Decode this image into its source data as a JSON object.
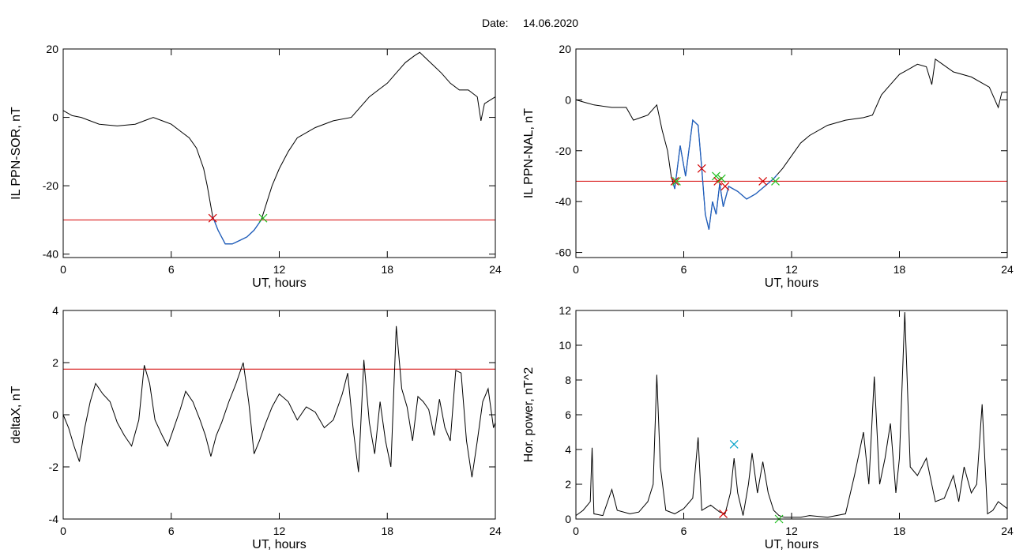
{
  "date_label": "Date:",
  "date_value": "14.06.2020",
  "colors": {
    "line": "#000000",
    "below": "#1f5fbf",
    "threshold": "#d40000",
    "marker_start": "#d40000",
    "marker_end": "#20c020",
    "marker_peak": "#00a0c8"
  },
  "chart_data": [
    {
      "type": "line",
      "id": "il-sor",
      "xlabel": "UT, hours",
      "ylabel": "IL PPN-SOR, nT",
      "xlim": [
        0,
        24
      ],
      "ylim": [
        -41,
        20
      ],
      "xticks": [
        0,
        6,
        12,
        18,
        24
      ],
      "yticks": [
        -40,
        -20,
        0,
        20
      ],
      "threshold": -30,
      "below_color_segment": [
        8.3,
        11.0
      ],
      "series": [
        {
          "points": [
            [
              0,
              2
            ],
            [
              0.5,
              0.5
            ],
            [
              1,
              0
            ],
            [
              2,
              -2
            ],
            [
              3,
              -2.5
            ],
            [
              4,
              -2
            ],
            [
              4.5,
              -1
            ],
            [
              5,
              0
            ],
            [
              5.5,
              -1
            ],
            [
              6,
              -2
            ],
            [
              6.5,
              -4
            ],
            [
              7,
              -6
            ],
            [
              7.4,
              -9
            ],
            [
              7.8,
              -15
            ],
            [
              8,
              -20
            ],
            [
              8.3,
              -29
            ],
            [
              8.6,
              -33
            ],
            [
              9,
              -37
            ],
            [
              9.4,
              -37
            ],
            [
              9.8,
              -36
            ],
            [
              10.2,
              -35
            ],
            [
              10.6,
              -33
            ],
            [
              11,
              -30
            ],
            [
              11.3,
              -25
            ],
            [
              11.6,
              -20
            ],
            [
              12,
              -15
            ],
            [
              12.5,
              -10
            ],
            [
              13,
              -6
            ],
            [
              14,
              -3
            ],
            [
              15,
              -1
            ],
            [
              16,
              0
            ],
            [
              16.5,
              3
            ],
            [
              17,
              6
            ],
            [
              17.5,
              8
            ],
            [
              18,
              10
            ],
            [
              18.5,
              13
            ],
            [
              19,
              16
            ],
            [
              19.5,
              18
            ],
            [
              19.8,
              19
            ],
            [
              20.2,
              17
            ],
            [
              20.6,
              15
            ],
            [
              21,
              13
            ],
            [
              21.5,
              10
            ],
            [
              22,
              8
            ],
            [
              22.5,
              8
            ],
            [
              23,
              6
            ],
            [
              23.2,
              -1
            ],
            [
              23.4,
              4
            ],
            [
              24,
              6
            ]
          ]
        }
      ],
      "markers": [
        {
          "x": 8.3,
          "y": -29.5,
          "kind": "start"
        },
        {
          "x": 11.1,
          "y": -29.5,
          "kind": "end"
        }
      ]
    },
    {
      "type": "line",
      "id": "il-nal",
      "xlabel": "UT, hours",
      "ylabel": "IL PPN-NAL, nT",
      "xlim": [
        0,
        24
      ],
      "ylim": [
        -62,
        20
      ],
      "xticks": [
        0,
        6,
        12,
        18,
        24
      ],
      "yticks": [
        -60,
        -40,
        -20,
        0,
        20
      ],
      "threshold": -32,
      "below_color_segment": [
        5.4,
        11.2
      ],
      "series": [
        {
          "points": [
            [
              0,
              0
            ],
            [
              0.5,
              -1
            ],
            [
              1,
              -2
            ],
            [
              2,
              -3
            ],
            [
              2.8,
              -3
            ],
            [
              3.2,
              -8
            ],
            [
              3.6,
              -7
            ],
            [
              4,
              -6
            ],
            [
              4.5,
              -2
            ],
            [
              4.8,
              -12
            ],
            [
              5.1,
              -20
            ],
            [
              5.3,
              -30
            ],
            [
              5.5,
              -35
            ],
            [
              5.8,
              -18
            ],
            [
              6.1,
              -30
            ],
            [
              6.5,
              -8
            ],
            [
              6.8,
              -10
            ],
            [
              7,
              -27
            ],
            [
              7.2,
              -45
            ],
            [
              7.4,
              -51
            ],
            [
              7.6,
              -40
            ],
            [
              7.8,
              -45
            ],
            [
              8,
              -33
            ],
            [
              8.2,
              -42
            ],
            [
              8.5,
              -34
            ],
            [
              9,
              -36
            ],
            [
              9.5,
              -39
            ],
            [
              10,
              -37
            ],
            [
              10.5,
              -34
            ],
            [
              11,
              -31
            ],
            [
              11.5,
              -27
            ],
            [
              12,
              -22
            ],
            [
              12.5,
              -17
            ],
            [
              13,
              -14
            ],
            [
              14,
              -10
            ],
            [
              15,
              -8
            ],
            [
              16,
              -7
            ],
            [
              16.5,
              -6
            ],
            [
              17,
              2
            ],
            [
              17.5,
              6
            ],
            [
              18,
              10
            ],
            [
              18.5,
              12
            ],
            [
              19,
              14
            ],
            [
              19.5,
              13
            ],
            [
              19.8,
              6
            ],
            [
              20,
              16
            ],
            [
              20.4,
              14
            ],
            [
              21,
              11
            ],
            [
              22,
              9
            ],
            [
              23,
              5
            ],
            [
              23.5,
              -3
            ],
            [
              23.7,
              3
            ],
            [
              24,
              3
            ]
          ]
        }
      ],
      "markers": [
        {
          "x": 5.5,
          "y": -32,
          "kind": "start"
        },
        {
          "x": 5.6,
          "y": -32,
          "kind": "end"
        },
        {
          "x": 7.0,
          "y": -27,
          "kind": "start"
        },
        {
          "x": 7.8,
          "y": -30,
          "kind": "end"
        },
        {
          "x": 7.9,
          "y": -32,
          "kind": "start"
        },
        {
          "x": 8.1,
          "y": -31,
          "kind": "end"
        },
        {
          "x": 8.3,
          "y": -34,
          "kind": "start"
        },
        {
          "x": 10.4,
          "y": -32,
          "kind": "start"
        },
        {
          "x": 11.1,
          "y": -32,
          "kind": "end"
        }
      ]
    },
    {
      "type": "line",
      "id": "deltax",
      "xlabel": "UT, hours",
      "ylabel": "deltaX, nT",
      "xlim": [
        0,
        24
      ],
      "ylim": [
        -4,
        4
      ],
      "xticks": [
        0,
        6,
        12,
        18,
        24
      ],
      "yticks": [
        -4,
        -2,
        0,
        2,
        4
      ],
      "threshold": 1.75,
      "series": [
        {
          "points": [
            [
              0,
              0
            ],
            [
              0.3,
              -0.5
            ],
            [
              0.6,
              -1.2
            ],
            [
              0.9,
              -1.8
            ],
            [
              1.2,
              -0.5
            ],
            [
              1.5,
              0.5
            ],
            [
              1.8,
              1.2
            ],
            [
              2.2,
              0.8
            ],
            [
              2.6,
              0.5
            ],
            [
              3,
              -0.3
            ],
            [
              3.4,
              -0.8
            ],
            [
              3.8,
              -1.2
            ],
            [
              4.2,
              -0.2
            ],
            [
              4.5,
              1.9
            ],
            [
              4.8,
              1.2
            ],
            [
              5.1,
              -0.2
            ],
            [
              5.5,
              -0.8
            ],
            [
              5.8,
              -1.2
            ],
            [
              6.1,
              -0.6
            ],
            [
              6.5,
              0.2
            ],
            [
              6.8,
              0.9
            ],
            [
              7.2,
              0.5
            ],
            [
              7.6,
              -0.2
            ],
            [
              7.9,
              -0.8
            ],
            [
              8.2,
              -1.6
            ],
            [
              8.5,
              -0.8
            ],
            [
              8.8,
              -0.3
            ],
            [
              9.2,
              0.5
            ],
            [
              9.6,
              1.2
            ],
            [
              10,
              2.0
            ],
            [
              10.3,
              0.5
            ],
            [
              10.6,
              -1.5
            ],
            [
              10.9,
              -1.0
            ],
            [
              11.2,
              -0.4
            ],
            [
              11.6,
              0.3
            ],
            [
              12,
              0.8
            ],
            [
              12.5,
              0.5
            ],
            [
              13,
              -0.2
            ],
            [
              13.5,
              0.3
            ],
            [
              14,
              0.1
            ],
            [
              14.5,
              -0.5
            ],
            [
              15,
              -0.2
            ],
            [
              15.5,
              0.8
            ],
            [
              15.8,
              1.6
            ],
            [
              16.1,
              -0.5
            ],
            [
              16.4,
              -2.2
            ],
            [
              16.7,
              2.1
            ],
            [
              17,
              -0.3
            ],
            [
              17.3,
              -1.5
            ],
            [
              17.6,
              0.5
            ],
            [
              17.9,
              -1.0
            ],
            [
              18.2,
              -2.0
            ],
            [
              18.5,
              3.4
            ],
            [
              18.8,
              1.0
            ],
            [
              19.1,
              0.3
            ],
            [
              19.4,
              -1.0
            ],
            [
              19.7,
              0.7
            ],
            [
              20,
              0.5
            ],
            [
              20.3,
              0.2
            ],
            [
              20.6,
              -0.8
            ],
            [
              20.9,
              0.6
            ],
            [
              21.2,
              -0.5
            ],
            [
              21.5,
              -1.0
            ],
            [
              21.8,
              1.7
            ],
            [
              22.1,
              1.6
            ],
            [
              22.4,
              -1.0
            ],
            [
              22.7,
              -2.4
            ],
            [
              23,
              -1.0
            ],
            [
              23.3,
              0.5
            ],
            [
              23.6,
              1.0
            ],
            [
              23.9,
              -0.5
            ],
            [
              24,
              -0.3
            ]
          ]
        }
      ]
    },
    {
      "type": "line",
      "id": "hor-power",
      "xlabel": "UT, hours",
      "ylabel": "Hor. power, nT^2",
      "xlim": [
        0,
        24
      ],
      "ylim": [
        0,
        12
      ],
      "xticks": [
        0,
        6,
        12,
        18,
        24
      ],
      "yticks": [
        0,
        2,
        4,
        6,
        8,
        10,
        12
      ],
      "series": [
        {
          "points": [
            [
              0,
              0.2
            ],
            [
              0.4,
              0.5
            ],
            [
              0.8,
              1.0
            ],
            [
              0.9,
              4.1
            ],
            [
              1,
              0.3
            ],
            [
              1.5,
              0.2
            ],
            [
              2,
              1.7
            ],
            [
              2.3,
              0.5
            ],
            [
              3,
              0.3
            ],
            [
              3.5,
              0.4
            ],
            [
              4,
              1.0
            ],
            [
              4.3,
              2.0
            ],
            [
              4.5,
              8.3
            ],
            [
              4.7,
              3.0
            ],
            [
              5,
              0.5
            ],
            [
              5.5,
              0.3
            ],
            [
              6,
              0.6
            ],
            [
              6.5,
              1.2
            ],
            [
              6.8,
              4.7
            ],
            [
              7,
              0.5
            ],
            [
              7.5,
              0.8
            ],
            [
              8,
              0.4
            ],
            [
              8.3,
              0.3
            ],
            [
              8.6,
              1.5
            ],
            [
              8.8,
              3.5
            ],
            [
              9,
              1.5
            ],
            [
              9.3,
              0.2
            ],
            [
              9.6,
              2.0
            ],
            [
              9.8,
              3.8
            ],
            [
              10.1,
              1.5
            ],
            [
              10.4,
              3.3
            ],
            [
              10.7,
              1.5
            ],
            [
              11,
              0.5
            ],
            [
              11.3,
              0.2
            ],
            [
              11.6,
              0.1
            ],
            [
              12,
              0.1
            ],
            [
              12.5,
              0.1
            ],
            [
              13,
              0.2
            ],
            [
              14,
              0.1
            ],
            [
              15,
              0.3
            ],
            [
              15.5,
              2.5
            ],
            [
              16,
              5.0
            ],
            [
              16.3,
              2.0
            ],
            [
              16.6,
              8.2
            ],
            [
              16.9,
              2.0
            ],
            [
              17.2,
              3.5
            ],
            [
              17.5,
              5.5
            ],
            [
              17.8,
              1.5
            ],
            [
              18,
              3.5
            ],
            [
              18.3,
              11.9
            ],
            [
              18.6,
              3.0
            ],
            [
              19,
              2.5
            ],
            [
              19.5,
              3.5
            ],
            [
              20,
              1.0
            ],
            [
              20.5,
              1.2
            ],
            [
              21,
              2.5
            ],
            [
              21.3,
              1.0
            ],
            [
              21.6,
              3.0
            ],
            [
              22,
              1.5
            ],
            [
              22.3,
              2.0
            ],
            [
              22.6,
              6.6
            ],
            [
              22.9,
              0.3
            ],
            [
              23.2,
              0.5
            ],
            [
              23.5,
              1.0
            ],
            [
              24,
              0.6
            ]
          ]
        }
      ],
      "markers": [
        {
          "x": 8.8,
          "y": 4.3,
          "kind": "peak"
        },
        {
          "x": 8.2,
          "y": 0.3,
          "kind": "start"
        },
        {
          "x": 11.3,
          "y": 0.0,
          "kind": "end"
        }
      ]
    }
  ]
}
